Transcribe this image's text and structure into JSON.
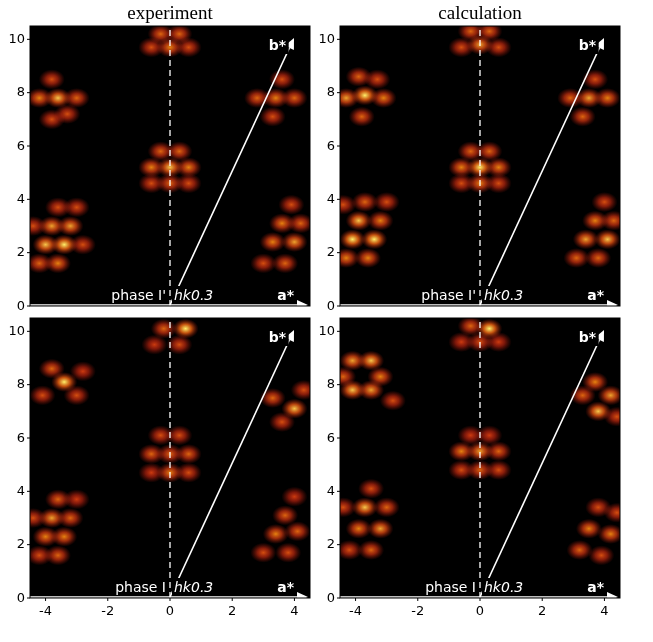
{
  "chart_data": [
    {
      "type": "scatter",
      "title": "experiment",
      "xlabel": "a*",
      "annotations": [
        "phase I'",
        "hk0.3",
        "b*"
      ],
      "xlim": [
        -4.5,
        4.5
      ],
      "ylim": [
        0,
        10.5
      ],
      "xticks": [
        -4,
        -2,
        0,
        2,
        4
      ],
      "yticks": [
        0,
        2,
        4,
        6,
        8,
        10
      ],
      "tick_labels": "y",
      "x": [
        -4.2,
        -4.0,
        -3.8,
        -3.6,
        -3.6,
        -3.4,
        -3.2,
        -3.0,
        -2.8,
        -4.4,
        3.0,
        3.3,
        3.6,
        3.9,
        3.7,
        4.0,
        4.2,
        -0.6,
        0,
        0.6,
        -0.6,
        0,
        0.6,
        -0.3,
        0.3,
        -3.8,
        -4.2,
        -3.6,
        -3.0,
        -3.8,
        -3.3,
        2.8,
        3.4,
        4.0,
        3.3,
        3.6,
        -0.6,
        0,
        0.6,
        -0.3,
        0.3
      ],
      "values": [
        1.6,
        2.3,
        3.0,
        3.7,
        1.6,
        2.3,
        3.0,
        3.7,
        2.3,
        3.0,
        1.6,
        2.4,
        3.1,
        3.8,
        1.6,
        2.4,
        3.1,
        4.6,
        4.6,
        4.6,
        5.2,
        5.2,
        5.2,
        5.8,
        5.8,
        7.0,
        7.8,
        7.8,
        7.8,
        8.5,
        7.2,
        7.8,
        7.8,
        7.8,
        7.1,
        8.5,
        9.7,
        9.7,
        9.7,
        10.2,
        10.2
      ],
      "intensity": [
        0.6,
        0.9,
        0.8,
        0.5,
        0.7,
        1.0,
        0.8,
        0.5,
        0.5,
        0.5,
        0.5,
        0.7,
        0.7,
        0.5,
        0.6,
        0.8,
        0.6,
        0.5,
        0.6,
        0.5,
        0.7,
        0.9,
        0.7,
        0.6,
        0.6,
        0.5,
        0.7,
        0.9,
        0.6,
        0.5,
        0.5,
        0.6,
        0.7,
        0.6,
        0.5,
        0.5,
        0.5,
        0.7,
        0.5,
        0.6,
        0.6
      ]
    },
    {
      "type": "scatter",
      "title": "calculation",
      "xlabel": "a*",
      "annotations": [
        "phase I'",
        "hk0.3",
        "b*"
      ],
      "xlim": [
        -4.5,
        4.5
      ],
      "ylim": [
        0,
        10.5
      ],
      "xticks": [
        -4,
        -2,
        0,
        2,
        4
      ],
      "yticks": [
        0,
        2,
        4,
        6,
        8,
        10
      ],
      "tick_labels": "y",
      "x": [
        -4.3,
        -4.1,
        -3.9,
        -3.7,
        -3.6,
        -3.4,
        -3.2,
        -3.0,
        -4.4,
        3.1,
        3.4,
        3.7,
        4.0,
        3.8,
        4.1,
        4.3,
        -0.6,
        0,
        0.6,
        -0.6,
        0,
        0.6,
        -0.3,
        0.3,
        -3.8,
        -4.3,
        -3.7,
        -3.1,
        -3.9,
        -3.3,
        2.9,
        3.5,
        4.1,
        3.3,
        3.7,
        -0.6,
        0,
        0.6,
        -0.3,
        0.3
      ],
      "values": [
        1.8,
        2.5,
        3.2,
        3.9,
        1.8,
        2.5,
        3.2,
        3.9,
        3.8,
        1.8,
        2.5,
        3.2,
        3.9,
        1.8,
        2.5,
        3.2,
        4.6,
        4.6,
        4.6,
        5.2,
        5.2,
        5.2,
        5.8,
        5.8,
        7.1,
        7.8,
        7.9,
        7.8,
        8.6,
        8.5,
        7.8,
        7.8,
        7.8,
        7.1,
        8.5,
        9.7,
        9.8,
        9.7,
        10.3,
        10.3
      ],
      "intensity": [
        0.7,
        1.0,
        0.9,
        0.6,
        0.7,
        1.0,
        0.7,
        0.5,
        0.5,
        0.6,
        0.8,
        0.7,
        0.5,
        0.6,
        0.9,
        0.6,
        0.5,
        0.7,
        0.5,
        0.7,
        1.0,
        0.7,
        0.6,
        0.6,
        0.6,
        0.8,
        1.0,
        0.7,
        0.6,
        0.5,
        0.6,
        0.8,
        0.7,
        0.6,
        0.5,
        0.5,
        0.8,
        0.5,
        0.6,
        0.6
      ]
    },
    {
      "type": "scatter",
      "xlabel": "a*",
      "annotations": [
        "phase I",
        "hk0.3",
        "b*"
      ],
      "xlim": [
        -4.5,
        4.5
      ],
      "ylim": [
        0,
        10.5
      ],
      "xticks": [
        -4,
        -2,
        0,
        2,
        4
      ],
      "yticks": [
        0,
        2,
        4,
        6,
        8,
        10
      ],
      "tick_labels": true,
      "x": [
        -4.2,
        -4.0,
        -3.8,
        -3.6,
        -3.6,
        -3.4,
        -3.2,
        -3.0,
        -4.4,
        3.0,
        3.4,
        3.7,
        4.0,
        3.8,
        4.1,
        -0.6,
        0,
        0.6,
        -0.6,
        0,
        0.6,
        -0.3,
        0.3,
        -4.1,
        -3.4,
        -3.8,
        -3.0,
        -2.8,
        3.6,
        4.0,
        3.3,
        4.3,
        -0.5,
        0.3,
        0.5,
        -0.2
      ],
      "values": [
        1.6,
        2.3,
        3.0,
        3.7,
        1.6,
        2.3,
        3.0,
        3.7,
        3.0,
        1.7,
        2.4,
        3.1,
        3.8,
        1.7,
        2.5,
        4.7,
        4.7,
        4.7,
        5.4,
        5.4,
        5.4,
        6.1,
        6.1,
        7.6,
        8.1,
        8.6,
        7.6,
        8.5,
        6.6,
        7.1,
        7.5,
        7.8,
        9.5,
        9.5,
        10.1,
        10.1
      ],
      "intensity": [
        0.5,
        0.7,
        0.8,
        0.6,
        0.6,
        0.7,
        0.6,
        0.4,
        0.5,
        0.5,
        0.7,
        0.6,
        0.4,
        0.5,
        0.6,
        0.4,
        0.7,
        0.5,
        0.6,
        0.6,
        0.6,
        0.5,
        0.5,
        0.5,
        1.0,
        0.6,
        0.5,
        0.4,
        0.5,
        0.9,
        0.6,
        0.5,
        0.4,
        0.5,
        1.0,
        0.6
      ]
    },
    {
      "type": "scatter",
      "xlabel": "a*",
      "annotations": [
        "phase I",
        "hk0.3",
        "b*"
      ],
      "xlim": [
        -4.5,
        4.5
      ],
      "ylim": [
        0,
        10.5
      ],
      "xticks": [
        -4,
        -2,
        0,
        2,
        4
      ],
      "yticks": [
        0,
        2,
        4,
        6,
        8,
        10
      ],
      "tick_labels": true,
      "x": [
        -4.2,
        -3.9,
        -3.7,
        -3.5,
        -3.5,
        -3.2,
        -3.0,
        -4.4,
        3.2,
        3.5,
        3.8,
        3.9,
        4.2,
        4.4,
        -0.6,
        0,
        0.6,
        -0.6,
        0,
        0.6,
        -0.3,
        0.3,
        -4.1,
        -3.5,
        -4.4,
        -3.2,
        -4.1,
        -3.5,
        -2.8,
        3.7,
        4.2,
        3.3,
        3.8,
        4.4,
        -0.6,
        0,
        0.6,
        0.3,
        -0.3
      ],
      "values": [
        1.8,
        2.6,
        3.4,
        4.1,
        1.8,
        2.6,
        3.4,
        3.4,
        1.8,
        2.6,
        3.4,
        1.6,
        2.4,
        3.2,
        4.8,
        4.8,
        4.8,
        5.5,
        5.5,
        5.5,
        6.1,
        6.1,
        8.9,
        8.9,
        8.3,
        8.3,
        7.8,
        7.8,
        7.4,
        8.1,
        7.6,
        7.6,
        7.0,
        6.8,
        9.6,
        9.6,
        9.6,
        10.1,
        10.2
      ],
      "intensity": [
        0.5,
        0.7,
        0.9,
        0.5,
        0.6,
        0.8,
        0.6,
        0.5,
        0.6,
        0.7,
        0.5,
        0.5,
        0.7,
        0.5,
        0.5,
        0.6,
        0.5,
        0.7,
        0.8,
        0.6,
        0.4,
        0.4,
        0.8,
        0.9,
        0.6,
        0.7,
        0.9,
        0.8,
        0.5,
        0.7,
        0.8,
        0.6,
        0.9,
        0.5,
        0.4,
        0.5,
        0.4,
        1.0,
        0.6
      ]
    }
  ]
}
